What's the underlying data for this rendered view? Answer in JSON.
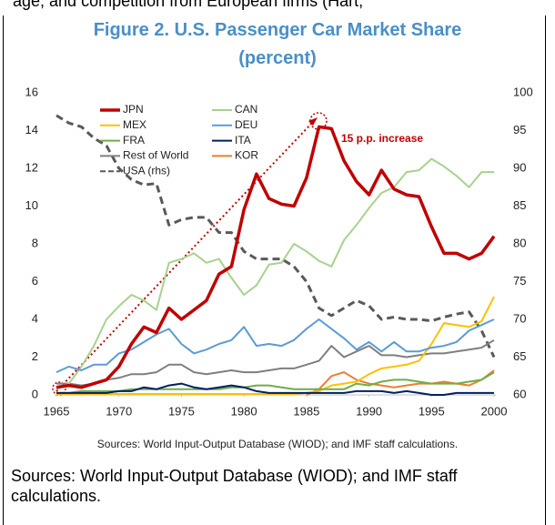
{
  "header_fragment": "age, and competition from European firms (Hart,",
  "caption": "Sources: World Input-Output Database (WIOD); and IMF staff calculations.",
  "chart_data": {
    "type": "line",
    "title": "Figure 2. U.S. Passenger Car Market Share (percent)",
    "note": "Sources: World Input-Output Database (WIOD); and IMF staff calculations.",
    "annotation": "15 p.p. increase",
    "x": [
      1965,
      1966,
      1967,
      1968,
      1969,
      1970,
      1971,
      1972,
      1973,
      1974,
      1975,
      1976,
      1977,
      1978,
      1979,
      1980,
      1981,
      1982,
      1983,
      1984,
      1985,
      1986,
      1987,
      1988,
      1989,
      1990,
      1991,
      1992,
      1993,
      1994,
      1995,
      1996,
      1997,
      1998,
      1999,
      2000
    ],
    "xlim": [
      1965,
      2000
    ],
    "xticks": [
      1965,
      1970,
      1975,
      1980,
      1985,
      1990,
      1995,
      2000
    ],
    "ylim": [
      0,
      16
    ],
    "yticks": [
      0,
      2,
      4,
      6,
      8,
      10,
      12,
      14,
      16
    ],
    "y2lim": [
      60,
      100
    ],
    "y2ticks": [
      60,
      65,
      70,
      75,
      80,
      85,
      90,
      95,
      100
    ],
    "series": [
      {
        "name": "JPN",
        "color": "#c00000",
        "values": [
          0.4,
          0.5,
          0.4,
          0.6,
          0.8,
          1.5,
          2.7,
          3.6,
          3.3,
          4.6,
          4.0,
          4.5,
          5.0,
          6.4,
          6.8,
          9.8,
          11.7,
          10.4,
          10.1,
          10.0,
          11.5,
          14.2,
          14.1,
          12.4,
          11.3,
          10.6,
          11.9,
          10.9,
          10.6,
          10.5,
          8.9,
          7.5,
          7.5,
          7.2,
          7.5,
          8.4
        ]
      },
      {
        "name": "CAN",
        "color": "#a9d18e",
        "values": [
          0.3,
          0.6,
          1.5,
          2.6,
          4.0,
          4.7,
          5.3,
          5.0,
          4.5,
          7.0,
          7.2,
          7.5,
          7.0,
          7.2,
          6.2,
          5.3,
          5.8,
          6.9,
          7.0,
          8.0,
          7.6,
          7.1,
          6.8,
          8.2,
          9.0,
          9.9,
          10.7,
          11.0,
          11.8,
          11.9,
          12.5,
          12.1,
          11.6,
          11.0,
          11.8,
          11.8
        ]
      },
      {
        "name": "MEX",
        "color": "#ffc000",
        "values": [
          0.05,
          0.05,
          0.05,
          0.05,
          0.05,
          0.05,
          0.05,
          0.05,
          0.05,
          0.05,
          0.05,
          0.05,
          0.05,
          0.05,
          0.05,
          0.05,
          0.05,
          0.05,
          0.05,
          0.05,
          0.1,
          0.2,
          0.5,
          0.6,
          0.7,
          1.1,
          1.4,
          1.5,
          1.6,
          1.8,
          2.7,
          3.8,
          3.7,
          3.6,
          3.9,
          5.2
        ]
      },
      {
        "name": "DEU",
        "color": "#5b9bd5",
        "values": [
          1.2,
          1.5,
          1.3,
          1.6,
          1.6,
          2.2,
          2.4,
          2.8,
          3.2,
          3.5,
          2.7,
          2.2,
          2.4,
          2.7,
          2.9,
          3.6,
          2.6,
          2.7,
          2.6,
          2.9,
          3.5,
          4.0,
          3.5,
          3.0,
          2.4,
          2.8,
          2.3,
          2.8,
          2.3,
          2.3,
          2.5,
          2.6,
          2.8,
          3.4,
          3.7,
          4.0
        ]
      },
      {
        "name": "FRA",
        "color": "#70ad47",
        "values": [
          0.1,
          0.1,
          0.2,
          0.2,
          0.2,
          0.2,
          0.3,
          0.3,
          0.3,
          0.3,
          0.3,
          0.3,
          0.3,
          0.3,
          0.4,
          0.4,
          0.5,
          0.5,
          0.4,
          0.3,
          0.3,
          0.3,
          0.3,
          0.3,
          0.6,
          0.5,
          0.7,
          0.8,
          0.8,
          0.7,
          0.6,
          0.6,
          0.6,
          0.7,
          0.8,
          1.2
        ]
      },
      {
        "name": "ITA",
        "color": "#002060",
        "values": [
          0.1,
          0.1,
          0.1,
          0.1,
          0.1,
          0.2,
          0.2,
          0.4,
          0.3,
          0.5,
          0.6,
          0.4,
          0.3,
          0.4,
          0.5,
          0.4,
          0.2,
          0.1,
          0.1,
          0.1,
          0.1,
          0.1,
          0.1,
          0.1,
          0.2,
          0.2,
          0.2,
          0.1,
          0.2,
          0.1,
          0.0,
          0.0,
          0.1,
          0.1,
          0.1,
          0.1
        ]
      },
      {
        "name": "Rest of World",
        "color": "#7f7f7f",
        "values": [
          0.6,
          0.6,
          0.5,
          0.6,
          0.8,
          0.9,
          1.1,
          1.1,
          1.2,
          1.6,
          1.6,
          1.2,
          1.1,
          1.2,
          1.3,
          1.2,
          1.2,
          1.3,
          1.4,
          1.4,
          1.6,
          1.8,
          2.6,
          2.0,
          2.3,
          2.6,
          2.1,
          2.1,
          2.0,
          2.1,
          2.2,
          2.2,
          2.3,
          2.4,
          2.5,
          2.9
        ]
      },
      {
        "name": "KOR",
        "color": "#ed7d31",
        "values": [
          null,
          null,
          null,
          null,
          null,
          null,
          null,
          null,
          null,
          null,
          null,
          null,
          null,
          null,
          null,
          null,
          null,
          null,
          null,
          null,
          0.0,
          0.3,
          1.0,
          1.2,
          0.8,
          0.6,
          0.5,
          0.4,
          0.5,
          0.6,
          0.6,
          0.7,
          0.6,
          0.5,
          0.8,
          1.3
        ]
      },
      {
        "name": "USA (rhs)",
        "color": "#595959",
        "axis": "y2",
        "dashed": true,
        "values": [
          97,
          96,
          95.5,
          94,
          93,
          90,
          88.5,
          87.8,
          88,
          82.5,
          83.2,
          83.5,
          83.5,
          81.5,
          81.5,
          79,
          78,
          78,
          78,
          77,
          75,
          71.5,
          70.5,
          71.5,
          72.5,
          71.8,
          70,
          70.3,
          70,
          70,
          69.8,
          70.3,
          70.7,
          71,
          68.5,
          65
        ]
      }
    ]
  }
}
